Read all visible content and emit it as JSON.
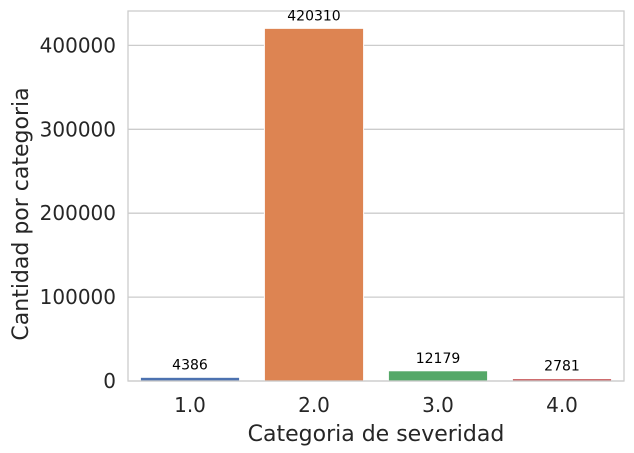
{
  "chart_data": {
    "type": "bar",
    "title": "",
    "xlabel": "Categoria de severidad",
    "ylabel": "Cantidad por categoria",
    "categories": [
      "1.0",
      "2.0",
      "3.0",
      "4.0"
    ],
    "values": [
      4386,
      420310,
      12179,
      2781
    ],
    "data_labels": [
      "4386",
      "420310",
      "12179",
      "2781"
    ],
    "bar_colors": [
      "#4c72b0",
      "#dd8452",
      "#55a868",
      "#c44e52"
    ],
    "ylim": [
      0,
      441000
    ],
    "yticks": [
      0,
      100000,
      200000,
      300000,
      400000
    ],
    "ytick_labels": [
      "0",
      "100000",
      "200000",
      "300000",
      "400000"
    ],
    "grid": "horizontal",
    "grid_color": "#cccccc",
    "spine_color": "#cccccc"
  }
}
